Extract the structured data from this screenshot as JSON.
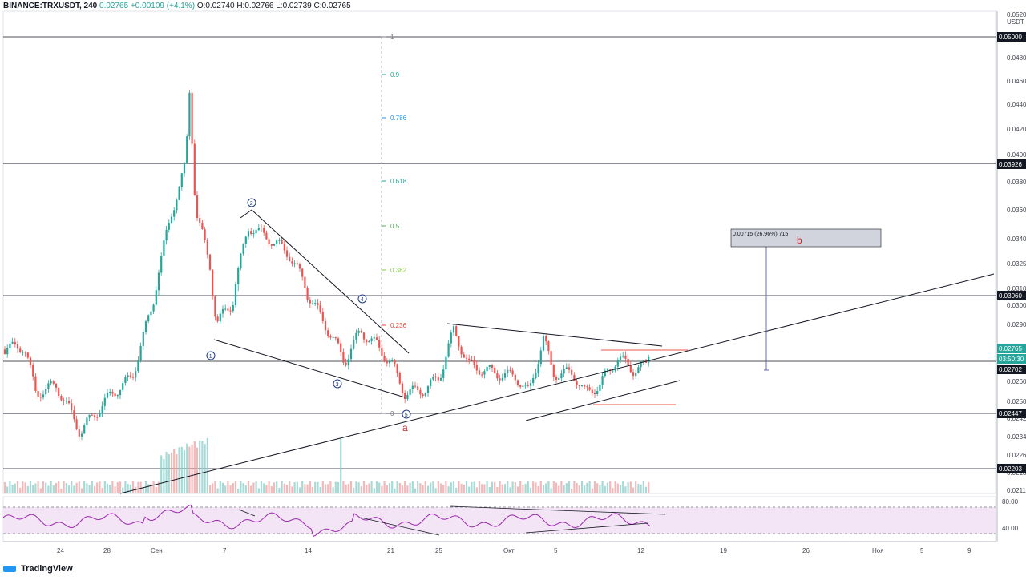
{
  "header": {
    "symbol": "BINANCE:TRXUSDT, 240",
    "last": "0.02765",
    "change": "+0.00109 (+4.1%)",
    "open": "O:0.02740",
    "high": "H:0.02766",
    "low": "L:0.02739",
    "close": "C:0.02765"
  },
  "footer": {
    "brand": "TradingView"
  },
  "colors": {
    "up": "#26a69a",
    "down": "#ef5350",
    "rsi": "#9c27b0",
    "rsi_band": "#f3e5f5",
    "fib_line": "#b2b5be"
  },
  "chart_data": [
    {
      "type": "candlestick",
      "symbol": "TRXUSDT",
      "interval": "240",
      "currency_label": "USDT",
      "price_axis_ticks": [
        "0.05200",
        "0.04800",
        "0.04600",
        "0.04400",
        "0.04200",
        "0.04000",
        "0.03800",
        "0.03600",
        "0.03400",
        "0.03250",
        "0.03100",
        "0.03000",
        "0.02900",
        "0.02600",
        "0.02500",
        "0.02420",
        "0.02340",
        "0.02260",
        "0.02180",
        "0.02110"
      ],
      "price_axis_badges": [
        {
          "value": "0.05000",
          "style": "dark"
        },
        {
          "value": "0.03926",
          "style": "dark"
        },
        {
          "value": "0.03060",
          "style": "dark"
        },
        {
          "value": "0.02765",
          "style": "last"
        },
        {
          "value": "03:50:30",
          "style": "timer"
        },
        {
          "value": "0.02702",
          "style": "dark"
        },
        {
          "value": "0.02447",
          "style": "dark"
        },
        {
          "value": "0.02203",
          "style": "dark"
        }
      ],
      "time_axis_ticks": [
        "24",
        "28",
        "Сен",
        "7",
        "14",
        "21",
        "25",
        "Окт",
        "5",
        "12",
        "19",
        "26",
        "Ноя",
        "5",
        "9"
      ],
      "horizontal_levels": [
        0.05,
        0.03926,
        0.0306,
        0.02702,
        0.02447,
        0.02203
      ],
      "fib_levels": [
        {
          "label": "1",
          "color": "#787b86"
        },
        {
          "label": "0.9",
          "color": "#26a69a"
        },
        {
          "label": "0.786",
          "color": "#2196f3"
        },
        {
          "label": "0.618",
          "color": "#26a69a"
        },
        {
          "label": "0.5",
          "color": "#4caf50"
        },
        {
          "label": "0.382",
          "color": "#8bc34a"
        },
        {
          "label": "0.236",
          "color": "#f44336"
        },
        {
          "label": "0",
          "color": "#787b86"
        }
      ],
      "wave_labels": [
        "1",
        "2",
        "3",
        "4",
        "5"
      ],
      "letter_labels": [
        "a",
        "b"
      ],
      "measure_box_text": "0.00715 (26.96%) 715",
      "ohlc_last": {
        "open": 0.0274,
        "high": 0.02766,
        "low": 0.02739,
        "close": 0.02765
      }
    },
    {
      "type": "line",
      "name": "RSI",
      "y_ticks": [
        "80.00",
        "40.00"
      ],
      "band": [
        30,
        70
      ]
    }
  ]
}
